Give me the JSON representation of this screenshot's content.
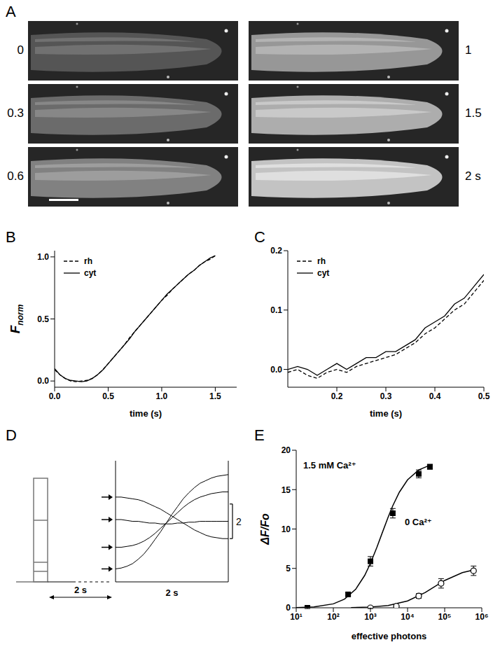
{
  "chart_data": [
    {
      "type": "image",
      "title": "A",
      "labels": [
        "0",
        "0.3",
        "0.6",
        "1",
        "1.5",
        "2 s"
      ]
    },
    {
      "type": "line",
      "title": "B",
      "x_label": "time (s)",
      "y_label": "Fnorm",
      "legend": "upper left",
      "xlim": [
        0,
        1.7
      ],
      "xticks": [
        {
          "value": 0,
          "label": "0.0"
        },
        0.5,
        {
          "value": 1,
          "label": "1.0"
        },
        1.5
      ],
      "ylim": [
        -0.05,
        1.05
      ],
      "yticks": [
        {
          "value": 0,
          "label": "0.0"
        },
        0.5,
        {
          "value": 1,
          "label": "1.0"
        }
      ],
      "x": [
        0,
        0.05,
        0.1,
        0.15,
        0.2,
        0.25,
        0.3,
        0.35,
        0.4,
        0.45,
        0.5,
        0.55,
        0.6,
        0.65,
        0.7,
        0.75,
        0.8,
        0.85,
        0.9,
        0.95,
        1.0,
        1.05,
        1.1,
        1.15,
        1.2,
        1.25,
        1.3,
        1.35,
        1.4,
        1.45,
        1.5
      ],
      "series": [
        {
          "name": "rh",
          "color": "#000000",
          "line_style": "dashed",
          "values": [
            0.09,
            0.05,
            0.02,
            0.0,
            -0.005,
            0.0,
            0.005,
            0.02,
            0.05,
            0.09,
            0.14,
            0.19,
            0.24,
            0.29,
            0.35,
            0.4,
            0.45,
            0.5,
            0.55,
            0.6,
            0.65,
            0.69,
            0.74,
            0.78,
            0.82,
            0.86,
            0.89,
            0.93,
            0.96,
            0.98,
            1.01
          ]
        },
        {
          "name": "cyt",
          "color": "#000000",
          "line_style": "solid",
          "values": [
            0.1,
            0.05,
            0.02,
            0.005,
            0.0,
            -0.005,
            0.0,
            0.02,
            0.05,
            0.09,
            0.14,
            0.19,
            0.24,
            0.29,
            0.34,
            0.4,
            0.45,
            0.5,
            0.55,
            0.6,
            0.65,
            0.7,
            0.74,
            0.78,
            0.82,
            0.86,
            0.89,
            0.93,
            0.96,
            0.99,
            1.01
          ]
        }
      ]
    },
    {
      "type": "line",
      "title": "C",
      "x_label": "time (s)",
      "legend": "upper left",
      "xlim": [
        0.1,
        0.5
      ],
      "xticks": [
        0.2,
        0.3,
        0.4,
        0.5
      ],
      "ylim": [
        -0.03,
        0.2
      ],
      "yticks": [
        {
          "value": 0,
          "label": "0.0"
        },
        0.1,
        0.2
      ],
      "x": [
        0.1,
        0.12,
        0.14,
        0.16,
        0.18,
        0.2,
        0.22,
        0.24,
        0.26,
        0.28,
        0.3,
        0.32,
        0.34,
        0.36,
        0.38,
        0.4,
        0.42,
        0.44,
        0.46,
        0.48,
        0.5
      ],
      "series": [
        {
          "name": "rh",
          "color": "#000000",
          "line_style": "dashed",
          "values": [
            -0.005,
            0.0,
            -0.01,
            -0.015,
            -0.005,
            0.0,
            -0.005,
            0.005,
            0.01,
            0.015,
            0.02,
            0.025,
            0.035,
            0.045,
            0.06,
            0.07,
            0.085,
            0.1,
            0.11,
            0.13,
            0.15
          ]
        },
        {
          "name": "cyt",
          "color": "#000000",
          "line_style": "solid",
          "values": [
            0.0,
            0.005,
            0.0,
            -0.01,
            0.0,
            0.01,
            0.0,
            0.01,
            0.02,
            0.02,
            0.03,
            0.03,
            0.04,
            0.05,
            0.07,
            0.08,
            0.09,
            0.11,
            0.12,
            0.14,
            0.16
          ]
        }
      ]
    },
    {
      "type": "line",
      "title": "D",
      "tick_labels": false,
      "x_label": "2 s",
      "delay_label": "2 s",
      "scale_bar": 2,
      "xlim": [
        0,
        2
      ],
      "ylim": [
        0,
        7
      ],
      "x": [
        0,
        0.1,
        0.2,
        0.3,
        0.4,
        0.5,
        0.6,
        0.7,
        0.8,
        0.9,
        1.0,
        1.1,
        1.2,
        1.3,
        1.4,
        1.5,
        1.6,
        1.7,
        1.8,
        1.9,
        2.0
      ],
      "series": [
        {
          "color": "#000000",
          "values": [
            4.9,
            4.9,
            4.85,
            4.8,
            4.75,
            4.65,
            4.5,
            4.35,
            4.2,
            4.0,
            3.8,
            3.6,
            3.4,
            3.2,
            3.0,
            2.85,
            2.7,
            2.6,
            2.55,
            2.5,
            2.5
          ]
        },
        {
          "color": "#000000",
          "values": [
            3.6,
            3.6,
            3.55,
            3.5,
            3.5,
            3.45,
            3.4,
            3.4,
            3.35,
            3.35,
            3.35,
            3.4,
            3.4,
            3.45,
            3.45,
            3.5,
            3.5,
            3.5,
            3.5,
            3.5,
            3.5
          ]
        },
        {
          "color": "#000000",
          "values": [
            2.0,
            2.0,
            2.05,
            2.1,
            2.2,
            2.35,
            2.55,
            2.8,
            3.1,
            3.4,
            3.7,
            4.0,
            4.3,
            4.55,
            4.75,
            4.9,
            5.0,
            5.1,
            5.15,
            5.2,
            5.2
          ]
        },
        {
          "color": "#000000",
          "values": [
            0.75,
            0.8,
            0.9,
            1.05,
            1.3,
            1.6,
            2.0,
            2.45,
            2.9,
            3.4,
            3.9,
            4.35,
            4.8,
            5.15,
            5.45,
            5.7,
            5.85,
            6.0,
            6.1,
            6.15,
            6.2
          ]
        }
      ]
    },
    {
      "type": "scatter",
      "title": "E",
      "x_label": "effective photons",
      "y_label": "ΔF/Fo",
      "log": "x",
      "xlim": [
        10,
        1000000
      ],
      "xticks": [
        {
          "value": 10,
          "label": "10¹"
        },
        {
          "value": 100,
          "label": "10²"
        },
        {
          "value": 1000,
          "label": "10³"
        },
        {
          "value": 10000,
          "label": "10⁴"
        },
        {
          "value": 100000,
          "label": "10⁵"
        },
        {
          "value": 1000000,
          "label": "10⁶"
        }
      ],
      "ylim": [
        0,
        20
      ],
      "yticks": [
        0,
        5,
        10,
        15,
        20
      ],
      "series": [
        {
          "type": "line",
          "color": "#000000",
          "x": [
            10,
            30,
            100,
            200,
            400,
            700,
            1000,
            1500,
            2000,
            3000,
            4000,
            6000,
            10000,
            20000,
            40000
          ],
          "values": [
            0.03,
            0.12,
            0.5,
            1.1,
            2.35,
            4.11,
            5.64,
            7.71,
            9.3,
            11.52,
            12.96,
            14.67,
            16.24,
            17.5,
            18.1
          ]
        },
        {
          "type": "line",
          "color": "#000000",
          "x": [
            300,
            1000,
            3000,
            10000,
            30000,
            100000,
            300000,
            600000
          ],
          "values": [
            0.03,
            0.1,
            0.29,
            0.87,
            1.95,
            3.47,
            4.46,
            4.8
          ]
        },
        {
          "type": "scatter",
          "name": "1.5 mM Ca²⁺",
          "marker": "square",
          "color": "#000000",
          "x": [
            20,
            250,
            1000,
            4000,
            20000,
            40000
          ],
          "values": [
            0,
            1.7,
            5.9,
            12,
            17,
            17.9
          ],
          "errors": [
            0.1,
            0.2,
            0.6,
            0.6,
            0.5,
            0.3
          ]
        },
        {
          "type": "scatter",
          "name": "0 Ca²⁺",
          "marker": "open_circle",
          "color": "#000000",
          "x": [
            1000,
            5000,
            20000,
            80000,
            600000
          ],
          "values": [
            0,
            0.2,
            1.5,
            3.1,
            4.7
          ],
          "errors": [
            0.1,
            0.1,
            0.3,
            0.6,
            0.6
          ]
        }
      ]
    }
  ]
}
